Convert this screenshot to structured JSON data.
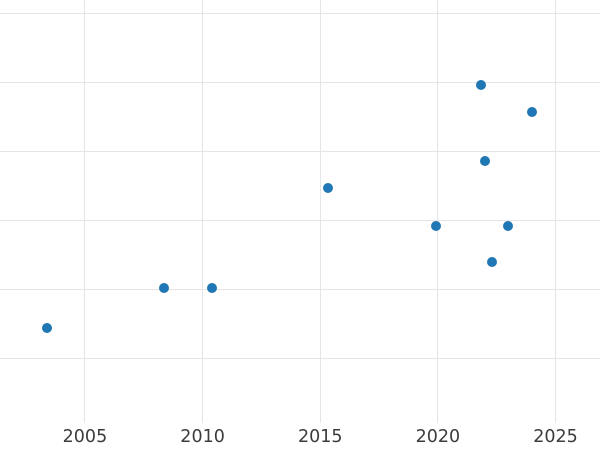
{
  "chart_data": {
    "type": "scatter",
    "title": "",
    "xlabel": "",
    "ylabel": "",
    "grid": true,
    "legend": "none",
    "x_ticks": [
      2005,
      2010,
      2015,
      2020,
      2025
    ],
    "x_tick_labels": [
      "2005",
      "2010",
      "2015",
      "2020",
      "2025"
    ],
    "y_tick_labels": [],
    "y_gridlines": [
      1,
      2,
      3,
      4,
      5,
      6
    ],
    "xlim": [
      2001.39,
      2026.89
    ],
    "ylim": [
      0.06,
      6.19
    ],
    "points": [
      {
        "x": 2003.37,
        "y": 1.44
      },
      {
        "x": 2008.36,
        "y": 2.02
      },
      {
        "x": 2010.38,
        "y": 2.02
      },
      {
        "x": 2015.34,
        "y": 3.47
      },
      {
        "x": 2019.9,
        "y": 2.92
      },
      {
        "x": 2021.85,
        "y": 4.96
      },
      {
        "x": 2022.01,
        "y": 3.85
      },
      {
        "x": 2022.32,
        "y": 2.4
      },
      {
        "x": 2022.98,
        "y": 2.92
      },
      {
        "x": 2024.0,
        "y": 4.57
      }
    ],
    "colors": {
      "point": "#1f77b4",
      "grid": "#e5e5e5",
      "tick_label": "#3c3c3c",
      "background": "#ffffff"
    }
  }
}
